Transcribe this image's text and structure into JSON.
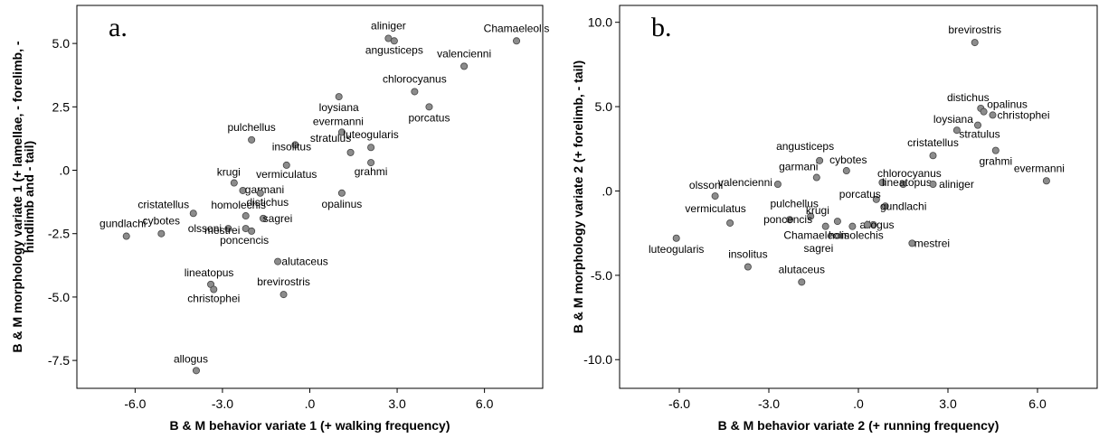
{
  "chart_data": [
    {
      "type": "scatter",
      "panel_label": "a.",
      "xlabel": "B & M behavior variate 1 (+ walking frequency)",
      "ylabel_lines": [
        "B & M morphology variate 1 (+ lamellae, - forelimb, -",
        "hindlimb and - tail)"
      ],
      "xlim": [
        -8.0,
        8.0
      ],
      "ylim": [
        -8.6,
        6.5
      ],
      "xticks": [
        -6.0,
        -3.0,
        0.0,
        3.0,
        6.0
      ],
      "xtick_labels": [
        "-6.0",
        "-3.0",
        ".0",
        "3.0",
        "6.0"
      ],
      "yticks": [
        -7.5,
        -5.0,
        -2.5,
        0.0,
        2.5,
        5.0
      ],
      "ytick_labels": [
        "-7.5",
        "-5.0",
        "-2.5",
        ".0",
        "2.5",
        "5.0"
      ],
      "points": [
        {
          "label": "Chamaeleolis",
          "x": 7.1,
          "y": 5.1
        },
        {
          "label": "aliniger",
          "x": 2.7,
          "y": 5.2
        },
        {
          "label": "angusticeps",
          "x": 2.9,
          "y": 5.1
        },
        {
          "label": "valencienni",
          "x": 5.3,
          "y": 4.1
        },
        {
          "label": "chlorocyanus",
          "x": 3.6,
          "y": 3.1
        },
        {
          "label": "loysiana",
          "x": 1.0,
          "y": 2.9
        },
        {
          "label": "porcatus",
          "x": 4.1,
          "y": 2.5
        },
        {
          "label": "pulchellus",
          "x": -2.0,
          "y": 1.2
        },
        {
          "label": "evermanni",
          "x": 1.1,
          "y": 1.5
        },
        {
          "label": "insolitus",
          "x": -0.5,
          "y": 1.0
        },
        {
          "label": "luteogularis",
          "x": 2.1,
          "y": 0.9
        },
        {
          "label": "stratulus",
          "x": 1.4,
          "y": 0.7
        },
        {
          "label": "grahmi",
          "x": 2.1,
          "y": 0.3
        },
        {
          "label": "vermiculatus",
          "x": -0.8,
          "y": 0.2
        },
        {
          "label": "krugi",
          "x": -2.6,
          "y": -0.5
        },
        {
          "label": "garmani",
          "x": -2.3,
          "y": -0.8
        },
        {
          "label": "distichus",
          "x": -1.7,
          "y": -0.9
        },
        {
          "label": "opalinus",
          "x": 1.1,
          "y": -0.9
        },
        {
          "label": "cristatellus",
          "x": -4.0,
          "y": -1.7
        },
        {
          "label": "homolechis",
          "x": -2.2,
          "y": -1.8
        },
        {
          "label": "olssoni",
          "x": -2.8,
          "y": -2.3
        },
        {
          "label": "sagrei",
          "x": -1.6,
          "y": -1.9
        },
        {
          "label": "mestrei",
          "x": -2.2,
          "y": -2.3
        },
        {
          "label": "poncencis",
          "x": -2.0,
          "y": -2.4
        },
        {
          "label": "cybotes",
          "x": -5.1,
          "y": -2.5
        },
        {
          "label": "gundlachi",
          "x": -6.3,
          "y": -2.6
        },
        {
          "label": "alutaceus",
          "x": -1.1,
          "y": -3.6
        },
        {
          "label": "lineatopus",
          "x": -3.4,
          "y": -4.5
        },
        {
          "label": "christophei",
          "x": -3.3,
          "y": -4.7
        },
        {
          "label": "brevirostris",
          "x": -0.9,
          "y": -4.9
        },
        {
          "label": "allogus",
          "x": -3.9,
          "y": -7.9
        }
      ]
    },
    {
      "type": "scatter",
      "panel_label": "b.",
      "xlabel": "B & M behavior variate 2 (+ running frequency)",
      "ylabel_lines": [
        "B & M morphology variate 2 (+ forelimb, - tail)"
      ],
      "xlim": [
        -8.0,
        8.0
      ],
      "ylim": [
        -11.7,
        11.0
      ],
      "xticks": [
        -6.0,
        -3.0,
        0.0,
        3.0,
        6.0
      ],
      "xtick_labels": [
        "-6.0",
        "-3.0",
        ".0",
        "3.0",
        "6.0"
      ],
      "yticks": [
        -10.0,
        -5.0,
        0.0,
        5.0,
        10.0
      ],
      "ytick_labels": [
        "-10.0",
        "-5.0",
        ".0",
        "5.0",
        "10.0"
      ],
      "points": [
        {
          "label": "brevirostris",
          "x": 3.9,
          "y": 8.8
        },
        {
          "label": "distichus",
          "x": 4.1,
          "y": 4.9
        },
        {
          "label": "opalinus",
          "x": 4.2,
          "y": 4.7
        },
        {
          "label": "christophei",
          "x": 4.5,
          "y": 4.5
        },
        {
          "label": "loysiana",
          "x": 3.3,
          "y": 3.6
        },
        {
          "label": "stratulus",
          "x": 4.0,
          "y": 3.9
        },
        {
          "label": "cristatellus",
          "x": 2.5,
          "y": 2.1
        },
        {
          "label": "grahmi",
          "x": 4.6,
          "y": 2.4
        },
        {
          "label": "angusticeps",
          "x": -1.3,
          "y": 1.8
        },
        {
          "label": "cybotes",
          "x": -0.4,
          "y": 1.2
        },
        {
          "label": "garmani",
          "x": -1.4,
          "y": 0.8
        },
        {
          "label": "chlorocyanus",
          "x": 0.8,
          "y": 0.5
        },
        {
          "label": "evermanni",
          "x": 6.3,
          "y": 0.6
        },
        {
          "label": "valencienni",
          "x": -2.7,
          "y": 0.4
        },
        {
          "label": "lineatopus",
          "x": 1.5,
          "y": 0.4
        },
        {
          "label": "aliniger",
          "x": 2.5,
          "y": 0.4
        },
        {
          "label": "olssoni",
          "x": -4.8,
          "y": -0.3
        },
        {
          "label": "porcatus",
          "x": 0.6,
          "y": -0.5
        },
        {
          "label": "gundlachi",
          "x": 0.9,
          "y": -0.9
        },
        {
          "label": "pulchellus",
          "x": -1.6,
          "y": -1.5
        },
        {
          "label": "poncencis",
          "x": -2.3,
          "y": -1.7
        },
        {
          "label": "krugi",
          "x": -0.7,
          "y": -1.8
        },
        {
          "label": "allogus",
          "x": 0.5,
          "y": -2.0
        },
        {
          "label": "vermiculatus",
          "x": -4.3,
          "y": -1.9
        },
        {
          "label": "Chamaeleolis",
          "x": -1.1,
          "y": -2.1
        },
        {
          "label": "homolechis",
          "x": -0.2,
          "y": -2.1
        },
        {
          "label": "mestrei",
          "x": 1.8,
          "y": -3.1
        },
        {
          "label": "sagrei",
          "x": 0.3,
          "y": -2.0
        },
        {
          "label": "luteogularis",
          "x": -6.1,
          "y": -2.8
        },
        {
          "label": "insolitus",
          "x": -3.7,
          "y": -4.5
        },
        {
          "label": "alutaceus",
          "x": -1.9,
          "y": -5.4
        }
      ]
    }
  ]
}
